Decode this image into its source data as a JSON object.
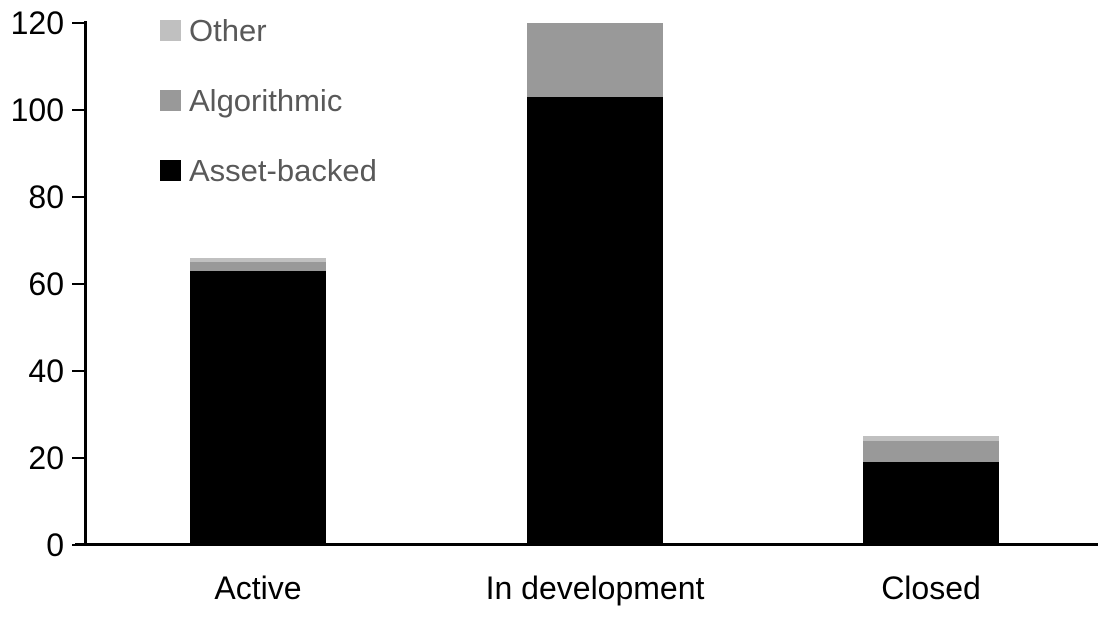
{
  "chart_data": {
    "type": "bar",
    "stacked": true,
    "title": "",
    "xlabel": "",
    "ylabel": "",
    "categories": [
      "Active",
      "In development",
      "Closed"
    ],
    "series": [
      {
        "name": "Asset-backed",
        "color": "#000000",
        "values": [
          63,
          103,
          19
        ]
      },
      {
        "name": "Algorithmic",
        "color": "#999999",
        "values": [
          2,
          17,
          5
        ]
      },
      {
        "name": "Other",
        "color": "#c0c0c0",
        "values": [
          1,
          0,
          1
        ]
      }
    ],
    "totals": [
      66,
      120,
      25
    ],
    "ylim": [
      0,
      120
    ],
    "yticks": [
      0,
      20,
      40,
      60,
      80,
      100,
      120
    ],
    "grid": false,
    "legend_position": "top-left",
    "legend_order": [
      "Other",
      "Algorithmic",
      "Asset-backed"
    ]
  },
  "colors": {
    "axis": "#000000",
    "tick_label_text": "#000000",
    "category_label_text": "#000000",
    "legend_text": "#595959",
    "background": "#ffffff"
  }
}
